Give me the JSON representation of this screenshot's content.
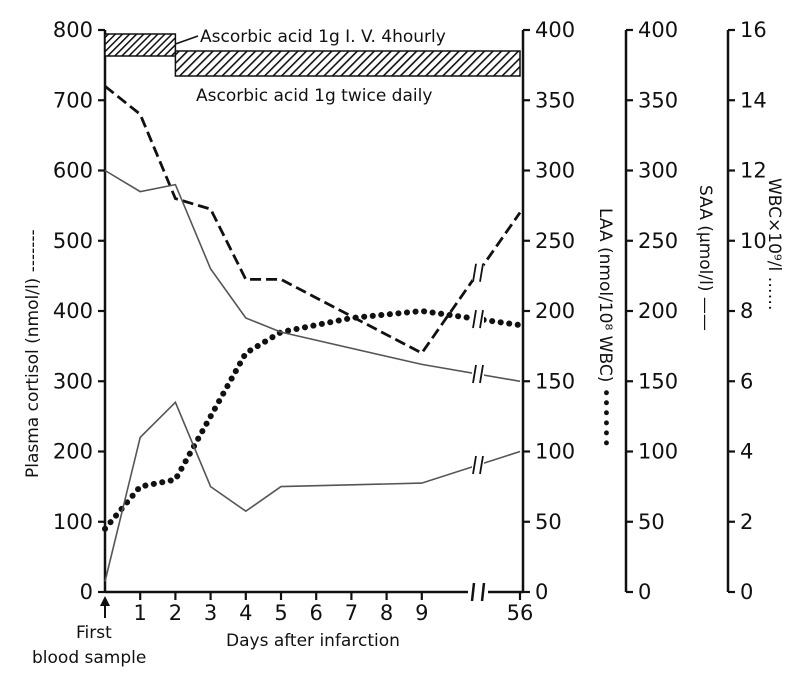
{
  "chart_data": {
    "type": "line",
    "xlabel": "Days after infarction",
    "x_ticks": [
      "1",
      "2",
      "3",
      "4",
      "5",
      "6",
      "7",
      "8",
      "9",
      "56"
    ],
    "first_sample_label_1": "First",
    "first_sample_label_2": "blood sample",
    "left_axis": {
      "label": "Plasma cortisol (nmol/l) -------",
      "ticks": [
        "0",
        "100",
        "200",
        "300",
        "400",
        "500",
        "600",
        "700",
        "800"
      ],
      "range": [
        0,
        800
      ]
    },
    "right_axes": [
      {
        "id": "laa",
        "label": "LAA (nmol/10⁸ WBC) ••••••",
        "ticks": [
          "0",
          "50",
          "100",
          "150",
          "200",
          "250",
          "300",
          "350",
          "400"
        ],
        "range": [
          0,
          400
        ]
      },
      {
        "id": "saa",
        "label": "SAA (µmol/l) ——",
        "ticks": [
          "0",
          "50",
          "100",
          "150",
          "200",
          "250",
          "300",
          "350",
          "400"
        ],
        "range": [
          0,
          400
        ]
      },
      {
        "id": "wbc",
        "label": "WBC×10⁹/l ……",
        "ticks": [
          "0",
          "2",
          "4",
          "6",
          "8",
          "10",
          "12",
          "14",
          "16"
        ],
        "range": [
          0,
          16
        ]
      }
    ],
    "annotations": {
      "iv_bar": "Ascorbic acid 1g I. V. 4hourly",
      "oral_bar": "Ascorbic acid 1g twice daily"
    },
    "treatment_bars": [
      {
        "name": "iv",
        "start_day": 0,
        "end_day": 2
      },
      {
        "name": "oral",
        "start_day": 2,
        "end_day": "56"
      }
    ],
    "series": [
      {
        "name": "Plasma cortisol",
        "axis": "left",
        "style": "dashed",
        "points": [
          [
            "0",
            720
          ],
          [
            "1",
            680
          ],
          [
            "2",
            560
          ],
          [
            "3",
            545
          ],
          [
            "4",
            445
          ],
          [
            "5",
            445
          ],
          [
            "9",
            340
          ],
          [
            "56",
            540
          ]
        ]
      },
      {
        "name": "LAA",
        "axis": "laa",
        "style": "dotted",
        "points": [
          [
            "0",
            45
          ],
          [
            "1",
            75
          ],
          [
            "2",
            80
          ],
          [
            "3",
            125
          ],
          [
            "4",
            170
          ],
          [
            "5",
            185
          ],
          [
            "7",
            195
          ],
          [
            "9",
            200
          ],
          [
            "56",
            190
          ]
        ]
      },
      {
        "name": "SAA",
        "axis": "saa",
        "style": "solid",
        "points": [
          [
            "0",
            300
          ],
          [
            "1",
            285
          ],
          [
            "2",
            290
          ],
          [
            "3",
            230
          ],
          [
            "4",
            195
          ],
          [
            "5",
            185
          ],
          [
            "9",
            162
          ],
          [
            "56",
            150
          ]
        ]
      },
      {
        "name": "WBC",
        "axis": "wbc",
        "style": "solid",
        "points": [
          [
            "0",
            0.3
          ],
          [
            "1",
            4.4
          ],
          [
            "2",
            5.4
          ],
          [
            "3",
            3.0
          ],
          [
            "4",
            2.3
          ],
          [
            "5",
            3.0
          ],
          [
            "9",
            3.1
          ],
          [
            "56",
            4.0
          ]
        ]
      }
    ]
  }
}
